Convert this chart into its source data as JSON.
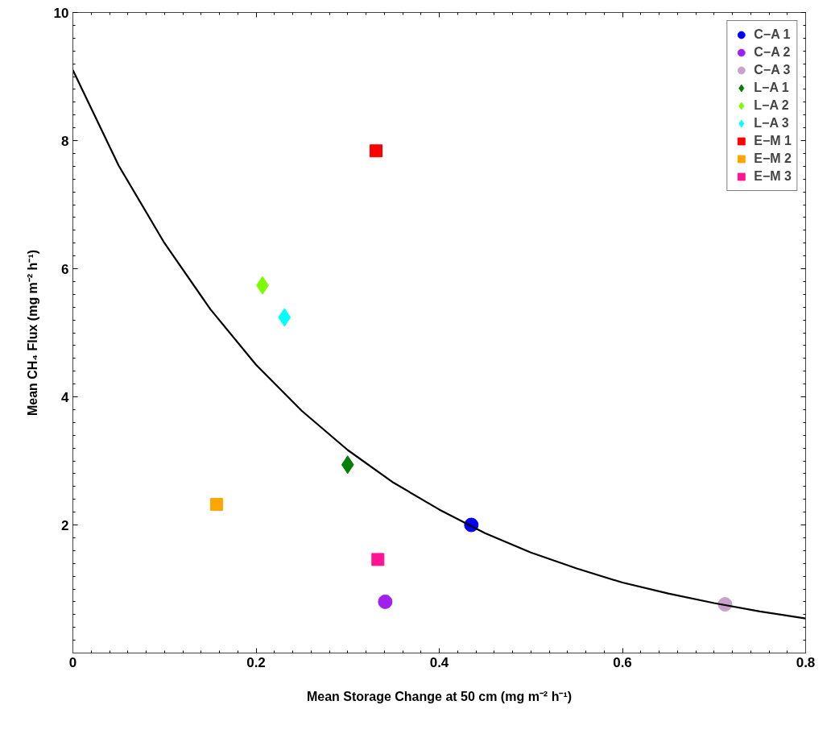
{
  "chart_data": {
    "type": "scatter",
    "xlabel": "Mean Storage Change at 50 cm (mg m⁻² h⁻¹)",
    "ylabel": "Mean CH₄ Flux (mg m⁻² h⁻¹)",
    "xlim": [
      0,
      0.8
    ],
    "xticks": [
      0,
      0.2,
      0.4,
      0.6,
      0.8
    ],
    "ylim": [
      0,
      10
    ],
    "yticks": [
      2,
      4,
      6,
      8,
      10
    ],
    "grid": false,
    "legend": "top right",
    "series": [
      {
        "name": "C−A 1",
        "color": "#0000ff",
        "marker": "circle",
        "x": [
          0.435
        ],
        "values": [
          2.0
        ]
      },
      {
        "name": "C−A 2",
        "color": "#a020f0",
        "marker": "circle",
        "x": [
          0.341
        ],
        "values": [
          0.8
        ]
      },
      {
        "name": "C−A 3",
        "color": "#c8a2c8",
        "marker": "circle",
        "x": [
          0.712
        ],
        "values": [
          0.76
        ]
      },
      {
        "name": "L−A 1",
        "color": "#007f00",
        "marker": "diamond",
        "x": [
          0.3
        ],
        "values": [
          2.94
        ]
      },
      {
        "name": "L−A 2",
        "color": "#7cfc00",
        "marker": "diamond",
        "x": [
          0.207
        ],
        "values": [
          5.74
        ]
      },
      {
        "name": "L−A 3",
        "color": "#00ffff",
        "marker": "diamond",
        "x": [
          0.231
        ],
        "values": [
          5.24
        ]
      },
      {
        "name": "E−M 1",
        "color": "#ff0000",
        "marker": "square",
        "x": [
          0.331
        ],
        "values": [
          7.84
        ]
      },
      {
        "name": "E−M 2",
        "color": "#ffa500",
        "marker": "square",
        "x": [
          0.157
        ],
        "values": [
          2.32
        ]
      },
      {
        "name": "E−M 3",
        "color": "#ff1493",
        "marker": "square",
        "x": [
          0.333
        ],
        "values": [
          1.46
        ]
      },
      {
        "type": "line",
        "color": "#000000",
        "line_style": "solid",
        "x": [
          0,
          0.05,
          0.1,
          0.15,
          0.2,
          0.25,
          0.3,
          0.35,
          0.4,
          0.45,
          0.5,
          0.55,
          0.6,
          0.65,
          0.7,
          0.75,
          0.8
        ],
        "values": [
          9.1,
          7.61,
          6.4,
          5.37,
          4.5,
          3.78,
          3.17,
          2.66,
          2.24,
          1.87,
          1.57,
          1.32,
          1.1,
          0.93,
          0.78,
          0.65,
          0.54
        ]
      }
    ]
  }
}
